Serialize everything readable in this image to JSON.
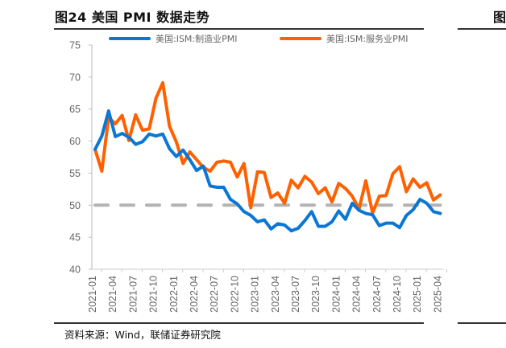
{
  "title": "图24 美国 PMI 数据走势",
  "source": "资料来源：Wind，联储证券研究院",
  "chart_data": {
    "type": "line",
    "title": "",
    "xlabel": "",
    "ylabel": "",
    "ylim": [
      40,
      75
    ],
    "yticks": [
      40,
      45,
      50,
      55,
      60,
      65,
      70,
      75
    ],
    "grid": false,
    "legend": "top",
    "reference_line": {
      "y": 50,
      "style": "dashed",
      "color": "#b3b3b3"
    },
    "start": "2021-01",
    "xtick_labels": [
      "2021-01",
      "2021-04",
      "2021-07",
      "2021-10",
      "2022-01",
      "2022-04",
      "2022-07",
      "2022-10",
      "2023-01",
      "2023-04",
      "2023-07",
      "2023-10",
      "2024-01",
      "2024-04",
      "2024-07",
      "2024-10",
      "2025-01",
      "2025-04"
    ],
    "series": [
      {
        "name": "美国:ISM:制造业PMI",
        "color": "#0a77d5",
        "values": [
          58.7,
          60.8,
          64.7,
          60.7,
          61.2,
          60.6,
          59.5,
          59.9,
          61.1,
          60.8,
          61.1,
          58.8,
          57.6,
          58.6,
          57.1,
          55.4,
          56.1,
          53.0,
          52.8,
          52.8,
          50.9,
          50.2,
          49.0,
          48.4,
          47.4,
          47.7,
          46.3,
          47.1,
          46.9,
          46.0,
          46.4,
          47.6,
          49.0,
          46.7,
          46.7,
          47.4,
          49.1,
          47.8,
          50.3,
          49.2,
          48.7,
          48.5,
          46.8,
          47.2,
          47.2,
          46.5,
          48.4,
          49.3,
          50.9,
          50.3,
          49.0,
          48.7
        ]
      },
      {
        "name": "美国:ISM:服务业PMI",
        "color": "#ff6000",
        "values": [
          58.7,
          55.3,
          63.7,
          62.7,
          64.0,
          60.1,
          64.1,
          61.7,
          61.9,
          66.7,
          69.1,
          62.3,
          59.9,
          56.5,
          58.3,
          57.1,
          55.9,
          55.3,
          56.7,
          56.9,
          56.7,
          54.4,
          56.5,
          49.6,
          55.2,
          55.1,
          51.2,
          51.9,
          50.3,
          53.9,
          52.7,
          54.5,
          53.6,
          51.8,
          52.7,
          50.5,
          53.4,
          52.6,
          51.4,
          49.4,
          53.8,
          48.8,
          51.4,
          51.5,
          54.9,
          56.0,
          52.1,
          54.1,
          52.8,
          53.5,
          50.8,
          51.6
        ]
      }
    ]
  }
}
